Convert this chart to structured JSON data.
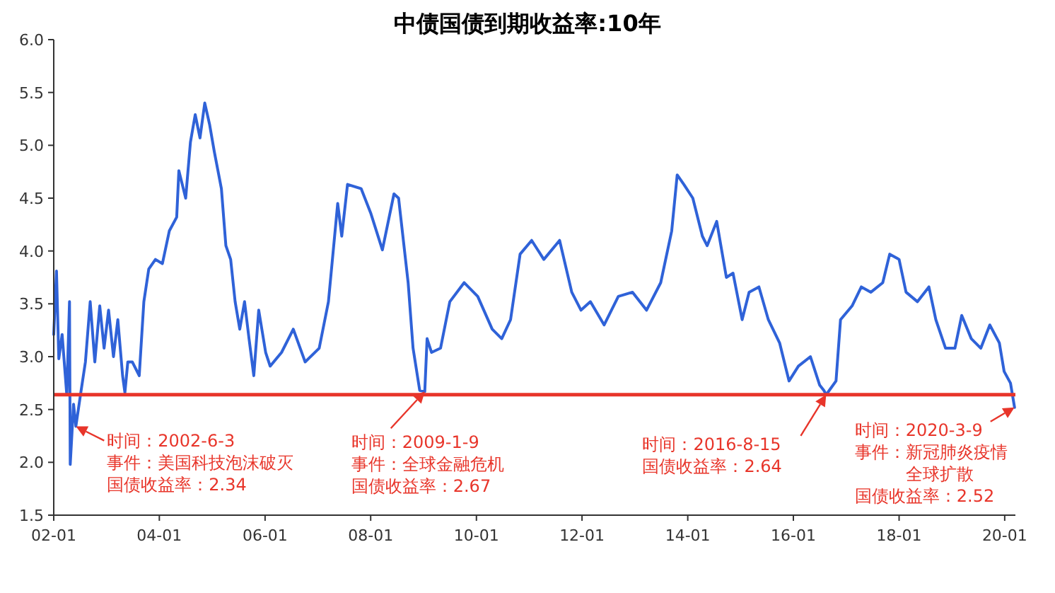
{
  "chart_data": {
    "type": "line",
    "title": "中债国债到期收益率:10年",
    "xlim": [
      "2002-01-01",
      "2020-03-15"
    ],
    "ylim": [
      1.5,
      6.0
    ],
    "xticks": [
      {
        "value": "2002-01-01",
        "label": "02-01"
      },
      {
        "value": "2004-01-01",
        "label": "04-01"
      },
      {
        "value": "2006-01-01",
        "label": "06-01"
      },
      {
        "value": "2008-01-01",
        "label": "08-01"
      },
      {
        "value": "2010-01-01",
        "label": "10-01"
      },
      {
        "value": "2012-01-01",
        "label": "12-01"
      },
      {
        "value": "2014-01-01",
        "label": "14-01"
      },
      {
        "value": "2016-01-01",
        "label": "16-01"
      },
      {
        "value": "2018-01-01",
        "label": "18-01"
      },
      {
        "value": "2020-01-01",
        "label": "20-01"
      }
    ],
    "yticks": [
      1.5,
      {
        "value": 2,
        "label": "2.0"
      },
      2.5,
      {
        "value": 3,
        "label": "3.0"
      },
      3.5,
      {
        "value": 4,
        "label": "4.0"
      },
      4.5,
      {
        "value": 5,
        "label": "5.0"
      },
      5.5,
      {
        "value": 6,
        "label": "6.0"
      }
    ],
    "grid": false,
    "series": [
      {
        "color": "#2f62d8",
        "x": [
          "2002-01-01",
          "2002-01-20",
          "2002-02-05",
          "2002-02-28",
          "2002-04-01",
          "2002-04-20",
          "2002-04-25",
          "2002-05-18",
          "2002-06-03",
          "2002-07-05",
          "2002-08-08",
          "2002-09-10",
          "2002-10-12",
          "2002-11-15",
          "2002-12-15",
          "2003-01-15",
          "2003-02-18",
          "2003-03-20",
          "2003-04-22",
          "2003-05-08",
          "2003-05-28",
          "2003-06-28",
          "2003-08-15",
          "2003-09-16",
          "2003-10-20",
          "2003-12-05",
          "2004-01-22",
          "2004-03-10",
          "2004-04-30",
          "2004-05-15",
          "2004-07-01",
          "2004-08-03",
          "2004-09-05",
          "2004-10-08",
          "2004-11-10",
          "2004-12-13",
          "2005-01-15",
          "2005-03-05",
          "2005-04-05",
          "2005-05-08",
          "2005-06-08",
          "2005-07-10",
          "2005-08-12",
          "2005-09-12",
          "2005-10-15",
          "2005-11-18",
          "2006-01-05",
          "2006-02-05",
          "2006-04-25",
          "2006-07-15",
          "2006-10-05",
          "2007-01-10",
          "2007-03-15",
          "2007-05-18",
          "2007-06-15",
          "2007-07-25",
          "2007-10-27",
          "2008-01-01",
          "2008-03-22",
          "2008-06-10",
          "2008-07-12",
          "2008-09-16",
          "2008-10-20",
          "2008-12-05",
          "2009-01-09",
          "2009-01-25",
          "2009-02-25",
          "2009-04-28",
          "2009-07-01",
          "2009-10-08",
          "2010-01-10",
          "2010-04-20",
          "2010-06-25",
          "2010-08-25",
          "2010-10-30",
          "2011-01-18",
          "2011-04-12",
          "2011-07-30",
          "2011-10-22",
          "2011-12-25",
          "2012-02-28",
          "2012-06-02",
          "2012-09-08",
          "2012-12-15",
          "2013-03-22",
          "2013-06-28",
          "2013-09-12",
          "2013-10-20",
          "2013-12-05",
          "2014-02-05",
          "2014-04-12",
          "2014-05-15",
          "2014-07-20",
          "2014-09-25",
          "2014-11-10",
          "2015-01-12",
          "2015-03-01",
          "2015-05-08",
          "2015-07-12",
          "2015-09-28",
          "2015-12-02",
          "2016-02-05",
          "2016-04-28",
          "2016-07-01",
          "2016-07-30",
          "2016-08-15",
          "2016-10-22",
          "2016-11-22",
          "2017-02-10",
          "2017-04-15",
          "2017-06-20",
          "2017-09-10",
          "2017-10-28",
          "2018-01-01",
          "2018-02-18",
          "2018-05-08",
          "2018-07-26",
          "2018-09-12",
          "2018-11-18",
          "2019-01-22",
          "2019-03-10",
          "2019-05-15",
          "2019-07-20",
          "2019-09-20",
          "2019-11-25",
          "2019-12-28",
          "2020-02-10",
          "2020-03-09"
        ],
        "values": [
          3.21,
          3.81,
          2.98,
          3.21,
          2.64,
          3.52,
          1.98,
          2.55,
          2.34,
          2.64,
          2.95,
          3.52,
          2.95,
          3.48,
          3.08,
          3.44,
          3.0,
          3.35,
          2.82,
          2.66,
          2.95,
          2.95,
          2.82,
          3.52,
          3.83,
          3.92,
          3.88,
          4.19,
          4.32,
          4.76,
          4.5,
          5.03,
          5.29,
          5.07,
          5.4,
          5.2,
          4.94,
          4.59,
          4.05,
          3.92,
          3.52,
          3.26,
          3.52,
          3.17,
          2.82,
          3.44,
          3.04,
          2.91,
          3.04,
          3.26,
          2.95,
          3.08,
          3.52,
          4.45,
          4.14,
          4.63,
          4.59,
          4.36,
          4.01,
          4.54,
          4.5,
          3.7,
          3.08,
          2.68,
          2.67,
          3.17,
          3.04,
          3.08,
          3.52,
          3.7,
          3.57,
          3.26,
          3.17,
          3.35,
          3.97,
          4.1,
          3.92,
          4.1,
          3.61,
          3.44,
          3.52,
          3.3,
          3.57,
          3.61,
          3.44,
          3.7,
          4.19,
          4.72,
          4.63,
          4.5,
          4.14,
          4.05,
          4.28,
          3.75,
          3.79,
          3.35,
          3.61,
          3.66,
          3.35,
          3.13,
          2.77,
          2.91,
          3.0,
          2.73,
          2.68,
          2.64,
          2.77,
          3.35,
          3.48,
          3.66,
          3.61,
          3.7,
          3.97,
          3.92,
          3.61,
          3.52,
          3.66,
          3.35,
          3.08,
          3.08,
          3.39,
          3.17,
          3.08,
          3.3,
          3.13,
          2.86,
          2.75,
          2.52
        ]
      }
    ],
    "ref_lines": [
      {
        "axis": "y",
        "value": 2.64,
        "color": "#e8352a"
      }
    ],
    "annotations": [
      {
        "text": "时间：2002-6-3",
        "x": "2002-06-03",
        "y": 2.34
      },
      "事件：美国科技泡沫破灭",
      "国债收益率：2.34",
      {
        "text": "时间：2009-1-9",
        "x": "2009-01-09",
        "y": 2.67
      },
      "事件：全球金融危机",
      "国债收益率：2.67",
      {
        "text": "时间：2016-8-15",
        "x": "2016-08-15",
        "y": 2.64
      },
      "国债收益率：2.64",
      {
        "text": "时间：2020-3-9",
        "x": "2020-03-09",
        "y": 2.52
      },
      "事件：新冠肺炎疫情全球扩散",
      "国债收益率：2.52"
    ]
  }
}
